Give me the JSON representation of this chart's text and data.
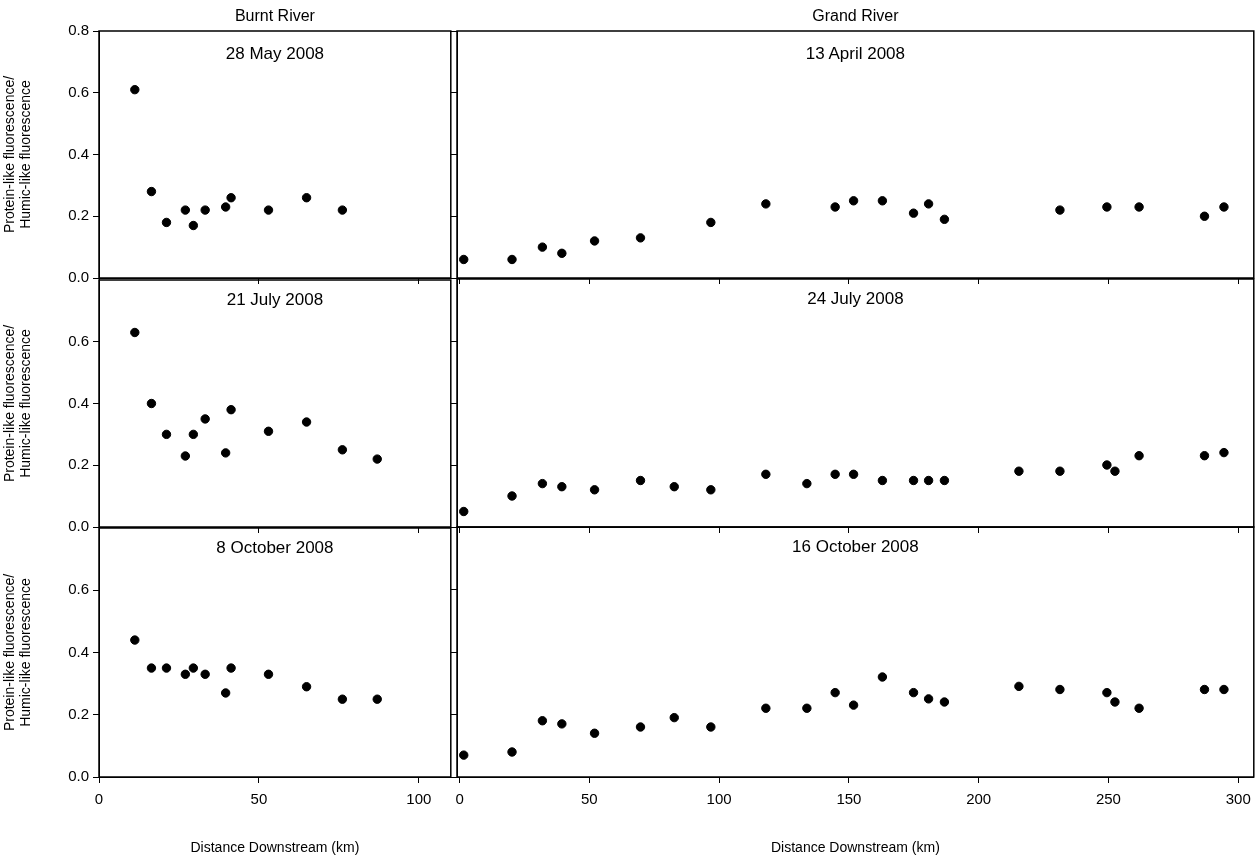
{
  "chart_data": [
    {
      "type": "scatter",
      "title": "Burnt River",
      "subtitle": "28 May 2008",
      "ylabel": "Protein-like fluorescence/Humic-like fluorescence",
      "marker": "circle",
      "color": "#000000",
      "tick_labels": "y",
      "x": [
        11.2,
        16.4,
        21.1,
        27.0,
        29.5,
        33.2,
        39.6,
        41.3,
        53.0,
        64.9,
        76.1
      ],
      "values": [
        0.61,
        0.28,
        0.18,
        0.22,
        0.17,
        0.22,
        0.23,
        0.26,
        0.22,
        0.26,
        0.22
      ],
      "xlim": [
        0,
        110
      ],
      "xticks": [
        0,
        50,
        100
      ],
      "ylim": [
        0,
        0.8
      ],
      "yticks": [
        {
          "value": 0,
          "label": "0.0"
        },
        {
          "value": 0.2,
          "label": "0.2"
        },
        {
          "value": 0.4,
          "label": "0.4"
        },
        {
          "value": 0.6,
          "label": "0.6"
        },
        {
          "value": 0.8,
          "label": "0.8"
        }
      ]
    },
    {
      "type": "scatter",
      "title": "Grand River",
      "subtitle": "13 April 2008",
      "marker": "circle",
      "color": "#000000",
      "tick_labels": false,
      "x": [
        1.6,
        20.2,
        31.9,
        39.4,
        52.0,
        69.7,
        96.8,
        118.0,
        144.7,
        151.8,
        162.9,
        174.9,
        180.7,
        186.8,
        231.3,
        249.4,
        261.8,
        287.0,
        294.5
      ],
      "values": [
        0.06,
        0.06,
        0.1,
        0.08,
        0.12,
        0.13,
        0.18,
        0.24,
        0.23,
        0.25,
        0.25,
        0.21,
        0.24,
        0.19,
        0.22,
        0.23,
        0.23,
        0.2,
        0.23
      ],
      "xlim": [
        -1,
        306
      ],
      "xticks": [
        0,
        50,
        100,
        150,
        200,
        250,
        300
      ],
      "ylim": [
        0,
        0.8
      ],
      "yticks": [
        0,
        0.2,
        0.4,
        0.6,
        0.8
      ]
    },
    {
      "type": "scatter",
      "subtitle": "21 July 2008",
      "ylabel": "Protein-like fluorescence/Humic-like fluorescence",
      "marker": "circle",
      "color": "#000000",
      "tick_labels": "y",
      "x": [
        11.2,
        16.4,
        21.1,
        27.0,
        29.5,
        33.2,
        39.6,
        41.3,
        53.0,
        64.9,
        76.1,
        87.0
      ],
      "values": [
        0.63,
        0.4,
        0.3,
        0.23,
        0.3,
        0.35,
        0.24,
        0.38,
        0.31,
        0.34,
        0.25,
        0.22
      ],
      "xlim": [
        0,
        110
      ],
      "xticks": [
        0,
        50,
        100
      ],
      "ylim": [
        0,
        0.8
      ],
      "yticks": [
        {
          "value": 0,
          "label": "0.0"
        },
        {
          "value": 0.2,
          "label": "0.2"
        },
        {
          "value": 0.4,
          "label": "0.4"
        },
        {
          "value": 0.6,
          "label": "0.6"
        }
      ]
    },
    {
      "type": "scatter",
      "subtitle": "24 July 2008",
      "marker": "circle",
      "color": "#000000",
      "tick_labels": false,
      "x": [
        1.6,
        20.2,
        31.9,
        39.4,
        52.0,
        69.7,
        82.7,
        96.8,
        118.0,
        133.8,
        144.7,
        151.8,
        162.9,
        174.9,
        180.7,
        186.8,
        215.5,
        231.3,
        249.4,
        252.5,
        261.8,
        287.0,
        294.5
      ],
      "values": [
        0.05,
        0.1,
        0.14,
        0.13,
        0.12,
        0.15,
        0.13,
        0.12,
        0.17,
        0.14,
        0.17,
        0.17,
        0.15,
        0.15,
        0.15,
        0.15,
        0.18,
        0.18,
        0.2,
        0.18,
        0.23,
        0.23,
        0.24
      ],
      "xlim": [
        -1,
        306
      ],
      "xticks": [
        0,
        50,
        100,
        150,
        200,
        250,
        300
      ],
      "ylim": [
        0,
        0.8
      ],
      "yticks": [
        0,
        0.2,
        0.4,
        0.6
      ]
    },
    {
      "type": "scatter",
      "subtitle": "8 October 2008",
      "xlabel": "Distance Downstream (km)",
      "ylabel": "Protein-like fluorescence/Humic-like fluorescence",
      "marker": "circle",
      "color": "#000000",
      "x": [
        11.2,
        16.4,
        21.1,
        27.0,
        29.5,
        33.2,
        39.6,
        41.3,
        53.0,
        64.9,
        76.1,
        87.0
      ],
      "values": [
        0.44,
        0.35,
        0.35,
        0.33,
        0.35,
        0.33,
        0.27,
        0.35,
        0.33,
        0.29,
        0.25,
        0.25
      ],
      "xlim": [
        0,
        110
      ],
      "xticks": [
        0,
        50,
        100
      ],
      "ylim": [
        0,
        0.8
      ],
      "yticks": [
        {
          "value": 0,
          "label": "0.0"
        },
        {
          "value": 0.2,
          "label": "0.2"
        },
        {
          "value": 0.4,
          "label": "0.4"
        },
        {
          "value": 0.6,
          "label": "0.6"
        }
      ]
    },
    {
      "type": "scatter",
      "subtitle": "16 October 2008",
      "xlabel": "Distance Downstream (km)",
      "marker": "circle",
      "color": "#000000",
      "tick_labels": "x",
      "x": [
        1.6,
        20.2,
        31.9,
        39.4,
        52.0,
        69.7,
        82.7,
        96.8,
        118.0,
        133.8,
        144.7,
        151.8,
        162.9,
        174.9,
        180.7,
        186.8,
        215.5,
        231.3,
        249.4,
        252.5,
        261.8,
        287.0,
        294.5
      ],
      "values": [
        0.07,
        0.08,
        0.18,
        0.17,
        0.14,
        0.16,
        0.19,
        0.16,
        0.22,
        0.22,
        0.27,
        0.23,
        0.32,
        0.27,
        0.25,
        0.24,
        0.29,
        0.28,
        0.27,
        0.24,
        0.22,
        0.28,
        0.28
      ],
      "xlim": [
        -1,
        306
      ],
      "xticks": [
        0,
        50,
        100,
        150,
        200,
        250,
        300
      ],
      "ylim": [
        0,
        0.8
      ],
      "yticks": [
        0,
        0.2,
        0.4,
        0.6
      ]
    }
  ]
}
